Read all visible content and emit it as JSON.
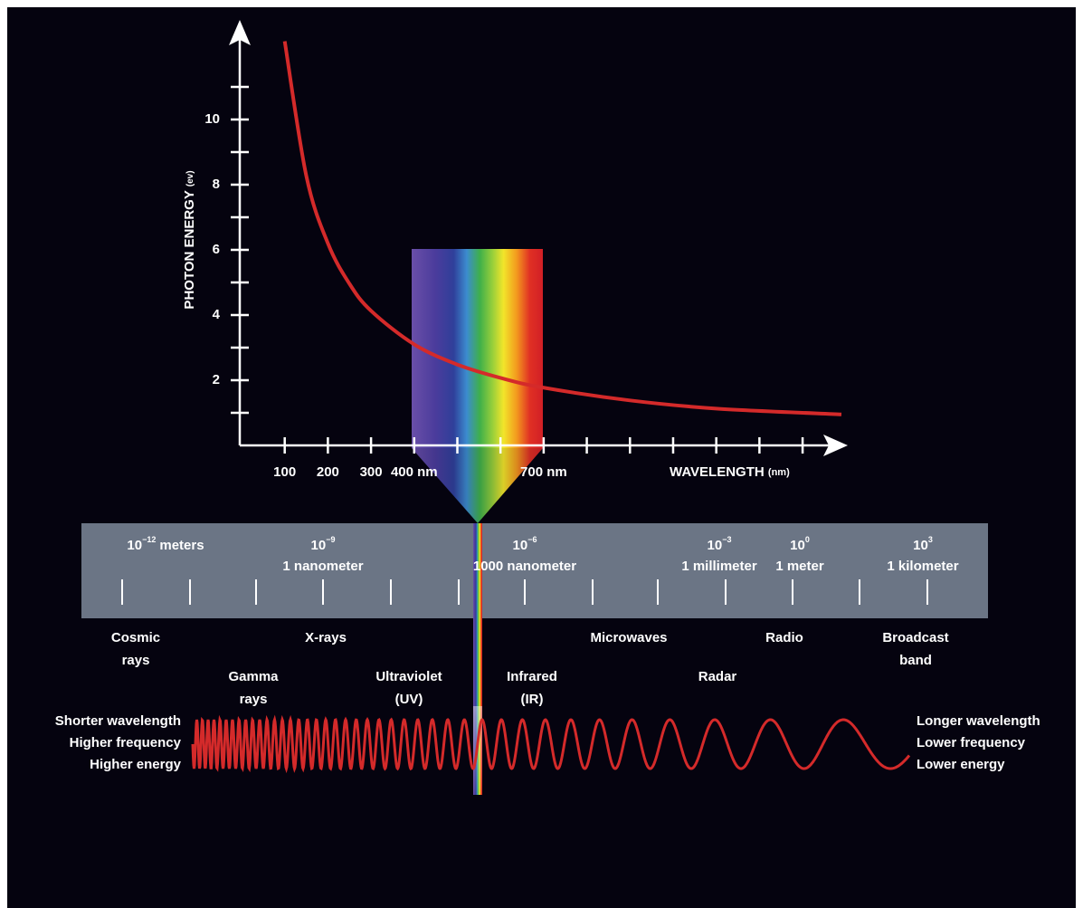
{
  "chart_data": {
    "type": "line",
    "y_label": "PHOTON ENERGY",
    "y_unit": "(ev)",
    "x_label": "WAVELENGTH",
    "x_unit": "(nm)",
    "x": [
      100,
      150,
      200,
      250,
      300,
      400,
      500,
      600,
      700,
      900,
      1100,
      1390
    ],
    "series": [
      {
        "color": "#d42a2a",
        "values": [
          12.4,
          8.27,
          6.2,
          4.96,
          4.13,
          3.1,
          2.48,
          2.07,
          1.77,
          1.38,
          1.13,
          0.95
        ]
      }
    ],
    "xlim": [
      0,
      1390
    ],
    "ylim": [
      0,
      12.5
    ],
    "xticks": [
      100,
      200,
      300,
      {
        "value": 400,
        "label": "400 nm"
      },
      {
        "value": 700,
        "label": "700 nm"
      }
    ],
    "xminor": [
      500,
      600,
      800,
      900,
      1000,
      1100,
      1200,
      1300
    ],
    "yticks": [
      2,
      4,
      6,
      8,
      10
    ],
    "yminor": [
      1,
      3,
      5,
      7,
      9,
      11
    ]
  },
  "scale": [
    {
      "base": "10",
      "exp": "−12",
      "text": "meters"
    },
    {
      "base": "10",
      "exp": "−9",
      "text": "1 nanometer"
    },
    {
      "base": "10",
      "exp": "−6",
      "text": "1000 nanometer"
    },
    {
      "base": "10",
      "exp": "−3",
      "text": "1 millimeter"
    },
    {
      "base": "10",
      "exp": "0",
      "text": "1 meter"
    },
    {
      "base": "10",
      "exp": "3",
      "text": "1 kilometer"
    }
  ],
  "bands": [
    [
      "Cosmic",
      "rays"
    ],
    [
      "X-rays"
    ],
    [
      "Microwaves"
    ],
    [
      "Radio"
    ],
    [
      "Broadcast",
      "band"
    ],
    [
      "Gamma",
      "rays"
    ],
    [
      "Ultraviolet",
      "(UV)"
    ],
    [
      "Infrared",
      "(IR)"
    ],
    [
      "Radar"
    ]
  ],
  "left_notes": [
    "Shorter wavelength",
    "Higher frequency",
    "Higher energy"
  ],
  "right_notes": [
    "Longer wavelength",
    "Lower frequency",
    "Lower energy"
  ]
}
